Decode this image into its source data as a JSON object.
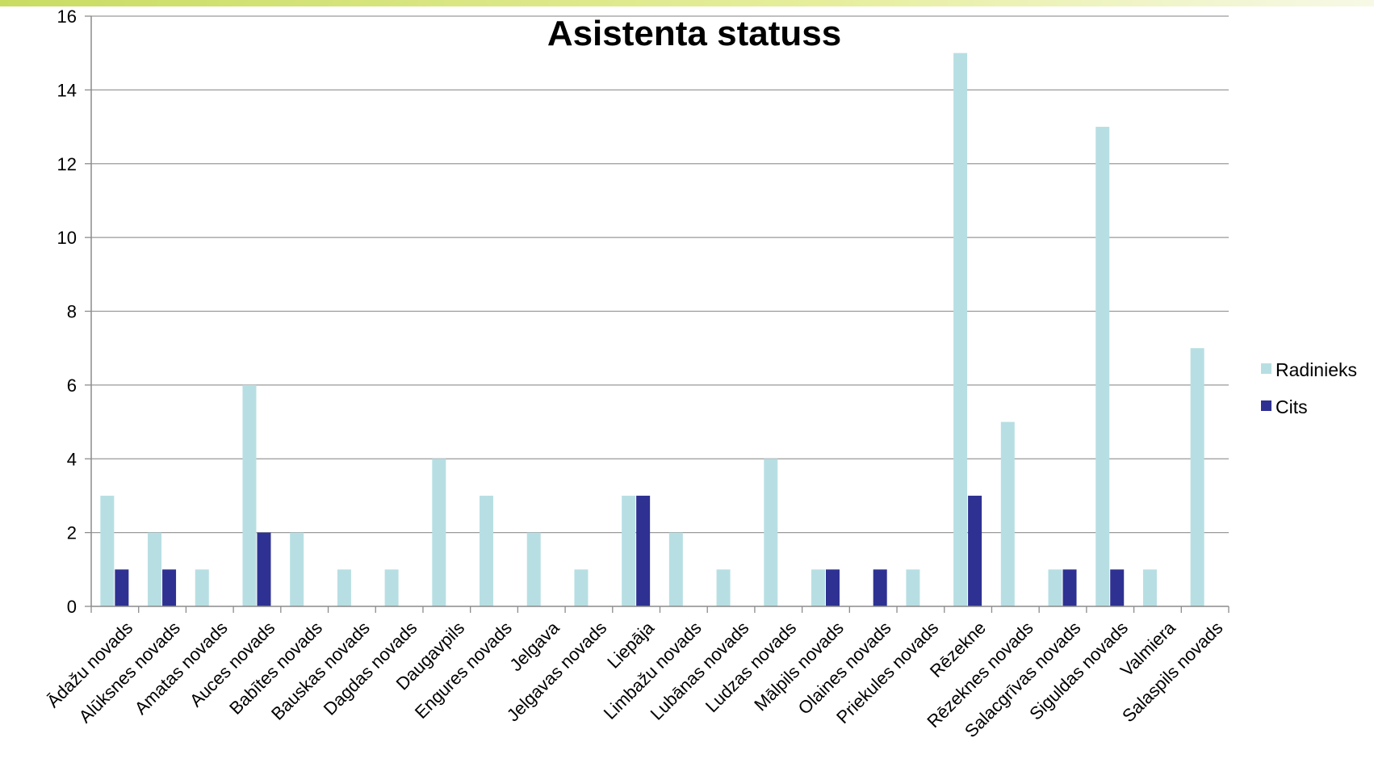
{
  "chart_data": {
    "type": "bar",
    "title": "Asistenta statuss",
    "xlabel": "",
    "ylabel": "",
    "ylim": [
      0,
      16
    ],
    "yticks": [
      0,
      2,
      4,
      6,
      8,
      10,
      12,
      14,
      16
    ],
    "grid": true,
    "legend_position": "right",
    "categories": [
      "Ādažu novads",
      "Alūksnes novads",
      "Amatas novads",
      "Auces novads",
      "Babītes novads",
      "Bauskas novads",
      "Dagdas novads",
      "Daugavpils",
      "Engures novads",
      "Jelgava",
      "Jelgavas novads",
      "Liepāja",
      "Limbažu novads",
      "Lubānas novads",
      "Ludzas novads",
      "Mālpils novads",
      "Olaines novads",
      "Priekules novads",
      "Rēzekne",
      "Rēzeknes novads",
      "Salacgrīvas novads",
      "Siguldas novads",
      "Valmiera",
      "Salaspils novads"
    ],
    "series": [
      {
        "name": "Radinieks",
        "color": "#b7dfe3",
        "values": [
          3,
          2,
          1,
          6,
          2,
          1,
          1,
          4,
          3,
          2,
          1,
          3,
          2,
          1,
          4,
          1,
          0,
          1,
          15,
          5,
          1,
          13,
          1,
          7
        ]
      },
      {
        "name": "Cits",
        "color": "#2e3192",
        "values": [
          1,
          1,
          0,
          2,
          0,
          0,
          0,
          0,
          0,
          0,
          0,
          3,
          0,
          0,
          0,
          1,
          1,
          0,
          3,
          0,
          1,
          1,
          0,
          0
        ]
      }
    ]
  }
}
